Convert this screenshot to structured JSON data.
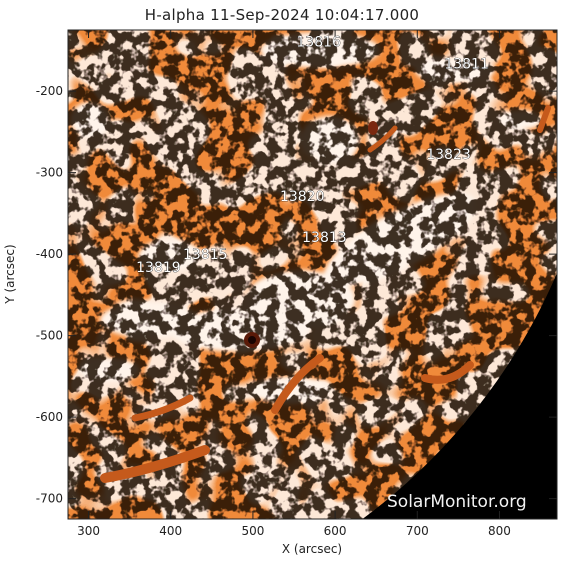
{
  "title": "H-alpha 11-Sep-2024 10:04:17.000",
  "xlabel": "X (arcsec)",
  "ylabel": "Y (arcsec)",
  "xlim": [
    275,
    870
  ],
  "ylim": [
    -725,
    -125
  ],
  "xticks": [
    300,
    400,
    500,
    600,
    700,
    800
  ],
  "yticks": [
    -200,
    -300,
    -400,
    -500,
    -600,
    -700
  ],
  "watermark": "SolarMonitor.org",
  "colors": {
    "base": "#f08a3a",
    "bright": "#fff2e6",
    "dark": "#9a3410",
    "space": "#000000"
  },
  "regions": [
    {
      "label": "13816",
      "x": 580,
      "y": -145
    },
    {
      "label": "13811",
      "x": 760,
      "y": -172
    },
    {
      "label": "13823",
      "x": 738,
      "y": -283
    },
    {
      "label": "13820",
      "x": 560,
      "y": -335
    },
    {
      "label": "13813",
      "x": 587,
      "y": -385
    },
    {
      "label": "13815",
      "x": 442,
      "y": -406
    },
    {
      "label": "13819",
      "x": 385,
      "y": -422
    }
  ]
}
